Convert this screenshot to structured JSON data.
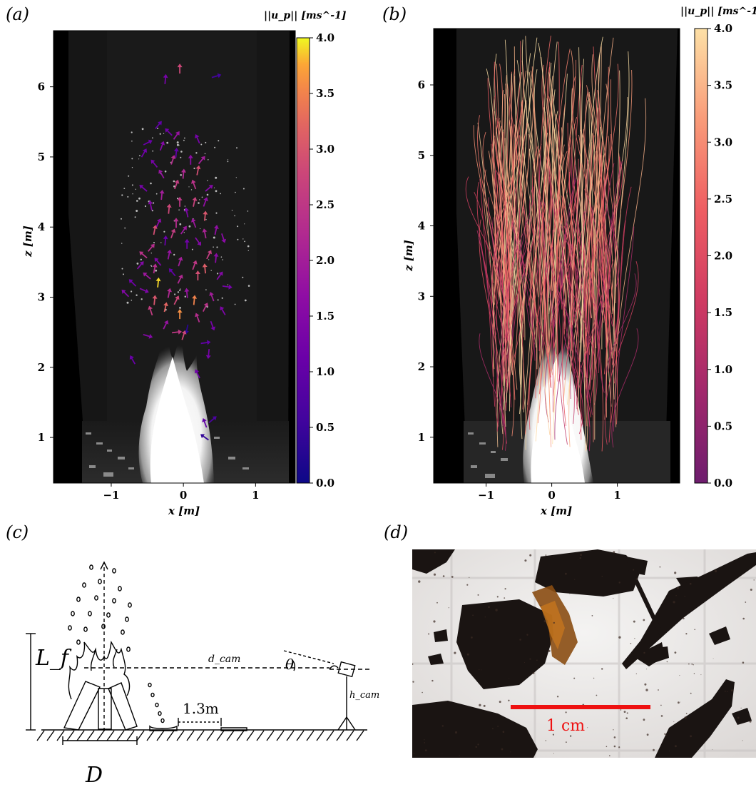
{
  "panels": {
    "a": {
      "label": "(a)",
      "xlabel": "x [m]",
      "ylabel": "z [m]",
      "colorbar_title": "||u_p|| [ms^-1]",
      "colorbar_ticks": [
        "0.0",
        "0.5",
        "1.0",
        "1.5",
        "2.0",
        "2.5",
        "3.0",
        "3.5",
        "4.0"
      ],
      "colormap": "plasma"
    },
    "b": {
      "label": "(b)",
      "xlabel": "x [m]",
      "ylabel": "z [m]",
      "colorbar_title": "||u_p|| [ms^-1]",
      "colorbar_ticks": [
        "0.0",
        "0.5",
        "1.0",
        "1.5",
        "2.0",
        "2.5",
        "3.0",
        "3.5",
        "4.0"
      ],
      "colormap": "magma"
    },
    "c": {
      "label": "(c)",
      "labels": {
        "flame_length": "L_f",
        "diameter": "D",
        "distance": "1.3m",
        "cam_distance": "d_cam",
        "angle": "θ",
        "cam_height": "h_cam"
      }
    },
    "d": {
      "label": "(d)",
      "scale_text": "1 cm",
      "scale_color": "#ee1111"
    }
  },
  "chart_data": [
    {
      "type": "scatter",
      "title": "",
      "xlabel": "x [m]",
      "ylabel": "z [m]",
      "xlim": [
        -1.8,
        1.55
      ],
      "ylim": [
        0.35,
        6.8
      ],
      "xticks": [
        -1,
        0,
        1
      ],
      "yticks": [
        1,
        2,
        3,
        4,
        5,
        6
      ],
      "colorbar": {
        "label": "||u_p|| [ms^-1]",
        "range": [
          0.0,
          4.0
        ],
        "cmap": "plasma"
      },
      "vectors": [
        {
          "x": -0.05,
          "z": 6.25,
          "dx": 0.0,
          "dz": 1,
          "s": 2.8
        },
        {
          "x": 0.45,
          "z": 6.15,
          "dx": 1,
          "dz": 0.3,
          "s": 0.6
        },
        {
          "x": -0.25,
          "z": 6.1,
          "dx": 0.1,
          "dz": 1,
          "s": 1.3
        },
        {
          "x": -0.35,
          "z": 5.45,
          "dx": 0.5,
          "dz": 0.6,
          "s": 1.0
        },
        {
          "x": -0.2,
          "z": 5.35,
          "dx": -0.5,
          "dz": 0.5,
          "s": 1.2
        },
        {
          "x": -0.1,
          "z": 5.3,
          "dx": 0.5,
          "dz": 0.7,
          "s": 1.8
        },
        {
          "x": -0.5,
          "z": 5.2,
          "dx": 0.6,
          "dz": 0.3,
          "s": 1.1
        },
        {
          "x": -0.3,
          "z": 5.15,
          "dx": 0.3,
          "dz": 0.8,
          "s": 1.5
        },
        {
          "x": 0.2,
          "z": 5.25,
          "dx": -0.3,
          "dz": 0.7,
          "s": 1.3
        },
        {
          "x": -0.55,
          "z": 5.05,
          "dx": 0.4,
          "dz": 0.7,
          "s": 1.2
        },
        {
          "x": -0.1,
          "z": 5.05,
          "dx": 0.1,
          "dz": 1,
          "s": 1.0
        },
        {
          "x": -0.4,
          "z": 4.9,
          "dx": -0.5,
          "dz": 0.6,
          "s": 1.3
        },
        {
          "x": -0.15,
          "z": 4.95,
          "dx": 0.3,
          "dz": 0.9,
          "s": 2.3
        },
        {
          "x": 0.1,
          "z": 4.95,
          "dx": 0.0,
          "dz": 1,
          "s": 1.6
        },
        {
          "x": 0.25,
          "z": 4.95,
          "dx": 0.5,
          "dz": 0.6,
          "s": 2.0
        },
        {
          "x": -0.3,
          "z": 4.75,
          "dx": -0.4,
          "dz": 0.7,
          "s": 1.8
        },
        {
          "x": 0.0,
          "z": 4.75,
          "dx": 0.1,
          "dz": 1,
          "s": 2.2
        },
        {
          "x": 0.2,
          "z": 4.8,
          "dx": 0.2,
          "dz": 1,
          "s": 2.9
        },
        {
          "x": -0.1,
          "z": 4.6,
          "dx": 0.3,
          "dz": 0.8,
          "s": 2.6
        },
        {
          "x": 0.15,
          "z": 4.6,
          "dx": -0.3,
          "dz": 0.8,
          "s": 2.4
        },
        {
          "x": 0.35,
          "z": 4.55,
          "dx": 0.6,
          "dz": 0.5,
          "s": 1.5
        },
        {
          "x": -0.55,
          "z": 4.55,
          "dx": -0.6,
          "dz": 0.5,
          "s": 1.3
        },
        {
          "x": -0.3,
          "z": 4.45,
          "dx": 0.1,
          "dz": 1,
          "s": 2.0
        },
        {
          "x": -0.05,
          "z": 4.35,
          "dx": 0.0,
          "dz": 1,
          "s": 2.5
        },
        {
          "x": 0.15,
          "z": 4.35,
          "dx": 0.2,
          "dz": 0.9,
          "s": 2.7
        },
        {
          "x": 0.3,
          "z": 4.35,
          "dx": 0.3,
          "dz": 0.8,
          "s": 1.7
        },
        {
          "x": -0.45,
          "z": 4.3,
          "dx": -0.2,
          "dz": 1,
          "s": 1.5
        },
        {
          "x": -0.2,
          "z": 4.25,
          "dx": 0.1,
          "dz": 1,
          "s": 2.8
        },
        {
          "x": 0.05,
          "z": 4.2,
          "dx": -0.2,
          "dz": 0.9,
          "s": 1.4
        },
        {
          "x": 0.3,
          "z": 4.15,
          "dx": 0.1,
          "dz": 1,
          "s": 3.0
        },
        {
          "x": -0.35,
          "z": 4.05,
          "dx": 0.4,
          "dz": 0.8,
          "s": 1.6
        },
        {
          "x": -0.1,
          "z": 4.05,
          "dx": 0.0,
          "dz": 1,
          "s": 2.3
        },
        {
          "x": 0.15,
          "z": 4.05,
          "dx": -0.3,
          "dz": 0.8,
          "s": 1.9
        },
        {
          "x": 0.45,
          "z": 3.95,
          "dx": 0.2,
          "dz": 0.9,
          "s": 1.7
        },
        {
          "x": -0.4,
          "z": 3.95,
          "dx": 0.2,
          "dz": 1,
          "s": 2.9
        },
        {
          "x": 0.0,
          "z": 3.95,
          "dx": 0.5,
          "dz": 0.7,
          "s": 1.9
        },
        {
          "x": -0.15,
          "z": 3.9,
          "dx": 0.3,
          "dz": 0.8,
          "s": 2.6
        },
        {
          "x": 0.3,
          "z": 3.9,
          "dx": -0.2,
          "dz": 1,
          "s": 2.1
        },
        {
          "x": 0.55,
          "z": 3.85,
          "dx": 0.3,
          "dz": -0.9,
          "s": 1.6
        },
        {
          "x": -0.25,
          "z": 3.8,
          "dx": 0.1,
          "dz": 1,
          "s": 1.1
        },
        {
          "x": 0.2,
          "z": 3.8,
          "dx": 0.5,
          "dz": -0.7,
          "s": 1.5
        },
        {
          "x": -0.45,
          "z": 3.7,
          "dx": 0.6,
          "dz": 0.7,
          "s": 2.3
        },
        {
          "x": 0.05,
          "z": 3.75,
          "dx": 0.0,
          "dz": 1,
          "s": 1.2
        },
        {
          "x": -0.55,
          "z": 3.6,
          "dx": -0.6,
          "dz": 0.5,
          "s": 2.4
        },
        {
          "x": -0.2,
          "z": 3.6,
          "dx": 0.2,
          "dz": 0.9,
          "s": 1.8
        },
        {
          "x": 0.35,
          "z": 3.6,
          "dx": 0.4,
          "dz": 0.8,
          "s": 2.6
        },
        {
          "x": -0.35,
          "z": 3.5,
          "dx": -0.5,
          "dz": 0.6,
          "s": 1.4
        },
        {
          "x": -0.05,
          "z": 3.5,
          "dx": 0.3,
          "dz": 0.9,
          "s": 2.0
        },
        {
          "x": 0.45,
          "z": 3.55,
          "dx": 0.1,
          "dz": 1,
          "s": 1.6
        },
        {
          "x": -0.6,
          "z": 3.45,
          "dx": 0.5,
          "dz": 0.6,
          "s": 1.5
        },
        {
          "x": -0.4,
          "z": 3.4,
          "dx": 0.2,
          "dz": 1,
          "s": 2.3
        },
        {
          "x": 0.15,
          "z": 3.45,
          "dx": 0.3,
          "dz": 0.8,
          "s": 2.5
        },
        {
          "x": 0.3,
          "z": 3.4,
          "dx": -0.1,
          "dz": 1,
          "s": 3.1
        },
        {
          "x": -0.15,
          "z": 3.35,
          "dx": -0.5,
          "dz": 0.6,
          "s": 1.0
        },
        {
          "x": -0.5,
          "z": 3.3,
          "dx": -0.6,
          "dz": 0.5,
          "s": 1.9
        },
        {
          "x": -0.05,
          "z": 3.25,
          "dx": 0.4,
          "dz": 0.8,
          "s": 2.2
        },
        {
          "x": 0.2,
          "z": 3.3,
          "dx": 0.0,
          "dz": 1,
          "s": 2.9
        },
        {
          "x": 0.5,
          "z": 3.3,
          "dx": 0.5,
          "dz": 0.7,
          "s": 1.5
        },
        {
          "x": -0.35,
          "z": 3.2,
          "dx": 0.1,
          "dz": 1,
          "s": 3.9
        },
        {
          "x": -0.7,
          "z": 3.2,
          "dx": -0.5,
          "dz": 0.5,
          "s": 1.2
        },
        {
          "x": 0.6,
          "z": 3.15,
          "dx": 0.7,
          "dz": -0.1,
          "s": 1.3
        },
        {
          "x": -0.55,
          "z": 3.1,
          "dx": 0.7,
          "dz": -0.3,
          "s": 1.4
        },
        {
          "x": -0.2,
          "z": 3.05,
          "dx": 0.2,
          "dz": 0.9,
          "s": 2.2
        },
        {
          "x": 0.05,
          "z": 3.05,
          "dx": -0.1,
          "dz": 1,
          "s": 1.8
        },
        {
          "x": -0.8,
          "z": 3.05,
          "dx": -0.5,
          "dz": 0.5,
          "s": 1.5
        },
        {
          "x": 0.4,
          "z": 3.0,
          "dx": -0.3,
          "dz": 0.8,
          "s": 2.0
        },
        {
          "x": -0.4,
          "z": 2.95,
          "dx": 0.1,
          "dz": 1,
          "s": 3.0
        },
        {
          "x": -0.1,
          "z": 2.95,
          "dx": 0.4,
          "dz": 0.8,
          "s": 2.8
        },
        {
          "x": 0.15,
          "z": 2.95,
          "dx": 0.1,
          "dz": 1,
          "s": 3.5
        },
        {
          "x": -0.25,
          "z": 2.85,
          "dx": 0.2,
          "dz": 0.9,
          "s": 3.2
        },
        {
          "x": 0.3,
          "z": 2.85,
          "dx": 0.4,
          "dz": 0.8,
          "s": 2.4
        },
        {
          "x": 0.55,
          "z": 2.8,
          "dx": -0.4,
          "dz": 0.7,
          "s": 1.4
        },
        {
          "x": -0.45,
          "z": 2.8,
          "dx": -0.3,
          "dz": 0.9,
          "s": 2.6
        },
        {
          "x": -0.05,
          "z": 2.75,
          "dx": 0.0,
          "dz": 1,
          "s": 3.6
        },
        {
          "x": 0.2,
          "z": 2.7,
          "dx": -0.3,
          "dz": 0.8,
          "s": 2.3
        },
        {
          "x": -0.25,
          "z": 2.6,
          "dx": 0.4,
          "dz": 0.8,
          "s": 1.8
        },
        {
          "x": 0.4,
          "z": 2.6,
          "dx": 0.3,
          "dz": -0.8,
          "s": 1.3
        },
        {
          "x": 0.05,
          "z": 2.55,
          "dx": -0.2,
          "dz": -0.9,
          "s": 0.3
        },
        {
          "x": -0.1,
          "z": 2.5,
          "dx": 0.8,
          "dz": 0.1,
          "s": 2.5
        },
        {
          "x": 0.0,
          "z": 2.45,
          "dx": 0.3,
          "dz": 0.9,
          "s": 2.8
        },
        {
          "x": -0.5,
          "z": 2.45,
          "dx": 0.7,
          "dz": -0.2,
          "s": 1.5
        },
        {
          "x": 0.3,
          "z": 2.35,
          "dx": 0.7,
          "dz": 0.1,
          "s": 1.0
        },
        {
          "x": 0.35,
          "z": 2.2,
          "dx": -0.1,
          "dz": -1,
          "s": 1.3
        },
        {
          "x": -0.7,
          "z": 2.1,
          "dx": -0.4,
          "dz": 0.7,
          "s": 1.1
        },
        {
          "x": 0.2,
          "z": 1.9,
          "dx": -0.4,
          "dz": 0.8,
          "s": 1.2
        },
        {
          "x": 0.4,
          "z": 1.25,
          "dx": 0.6,
          "dz": 0.5,
          "s": 0.7
        },
        {
          "x": 0.3,
          "z": 1.2,
          "dx": -0.3,
          "dz": 0.8,
          "s": 1.0
        },
        {
          "x": 0.3,
          "z": 1.0,
          "dx": -0.7,
          "dz": 0.5,
          "s": 0.4
        }
      ]
    },
    {
      "type": "line",
      "title": "",
      "xlabel": "x [m]",
      "ylabel": "z [m]",
      "xlim": [
        -1.8,
        1.95
      ],
      "ylim": [
        0.35,
        6.8
      ],
      "xticks": [
        -1,
        0,
        1
      ],
      "yticks": [
        1,
        2,
        3,
        4,
        5,
        6
      ],
      "colorbar": {
        "label": "||u_p|| [ms^-1]",
        "range": [
          0.0,
          4.0
        ],
        "cmap": "magma"
      },
      "trajectory_count": 260
    }
  ]
}
